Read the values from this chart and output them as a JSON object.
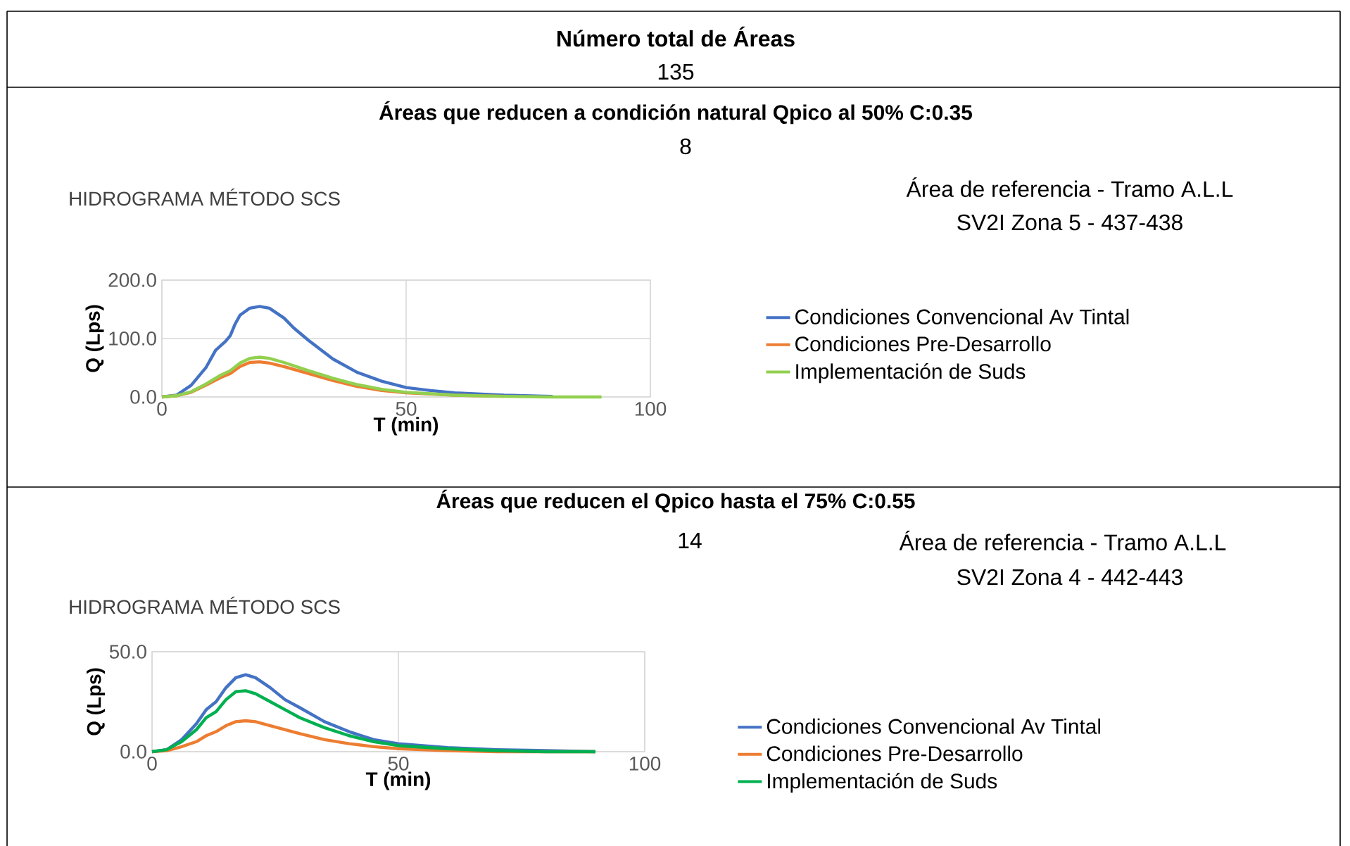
{
  "chart_data": [
    {
      "type": "line",
      "title": "Áreas que reducen a condición natural Qpico al 50% C:0.35",
      "subtitle": "HIDROGRAMA MÉTODO SCS",
      "annotations": [
        "Número total de Áreas",
        "135",
        "8",
        "Área de referencia - Tramo A.L.L",
        "SV2I Zona 5 - 437-438"
      ],
      "xlabel": "T (min)",
      "ylabel": "Q (Lps)",
      "xlim": [
        0,
        100
      ],
      "ylim": [
        0,
        200
      ],
      "xticks": [
        0,
        50,
        100
      ],
      "yticks": [
        {
          "value": 0,
          "label": "0.0"
        },
        {
          "value": 100,
          "label": "100.0"
        },
        {
          "value": 200,
          "label": "200.0"
        }
      ],
      "grid": true,
      "legend": "right",
      "series": [
        {
          "name": "Condiciones Convencional Av Tintal",
          "color": "#4472c4",
          "x": [
            0,
            3,
            6,
            9,
            11,
            13,
            14,
            15,
            16,
            18,
            20,
            22,
            25,
            27,
            30,
            35,
            40,
            45,
            50,
            55,
            60,
            70,
            80
          ],
          "values": [
            0,
            3,
            20,
            50,
            80,
            95,
            105,
            125,
            140,
            152,
            155,
            152,
            135,
            118,
            97,
            65,
            42,
            27,
            16,
            11,
            7,
            3,
            1
          ]
        },
        {
          "name": "Condiciones Pre-Desarrollo",
          "color": "#ed7d31",
          "x": [
            0,
            3,
            6,
            9,
            12,
            14,
            16,
            18,
            20,
            22,
            25,
            30,
            35,
            40,
            45,
            50,
            60,
            70
          ],
          "values": [
            0,
            2,
            8,
            20,
            33,
            40,
            52,
            59,
            60,
            58,
            52,
            40,
            28,
            18,
            11,
            7,
            3,
            1
          ]
        },
        {
          "name": "Implementación de Suds",
          "color": "#92d050",
          "x": [
            0,
            3,
            6,
            9,
            12,
            14,
            16,
            18,
            20,
            22,
            25,
            30,
            35,
            40,
            45,
            50,
            60,
            70,
            80,
            90
          ],
          "values": [
            0,
            2,
            9,
            22,
            37,
            45,
            58,
            66,
            68,
            66,
            59,
            45,
            32,
            21,
            13,
            8,
            3,
            1,
            0,
            0
          ]
        }
      ]
    },
    {
      "type": "line",
      "title": "Áreas que reducen el Qpico hasta el 75% C:0.55",
      "subtitle": "HIDROGRAMA MÉTODO SCS",
      "annotations": [
        "14",
        "Área de referencia - Tramo A.L.L",
        "SV2I Zona 4 - 442-443"
      ],
      "xlabel": "T (min)",
      "ylabel": "Q (Lps)",
      "xlim": [
        0,
        100
      ],
      "ylim": [
        0,
        50
      ],
      "xticks": [
        0,
        50,
        100
      ],
      "yticks": [
        {
          "value": 0,
          "label": "0.0"
        },
        {
          "value": 50,
          "label": "50.0"
        }
      ],
      "grid": true,
      "legend": "right",
      "series": [
        {
          "name": "Condiciones Convencional Av Tintal",
          "color": "#4472c4",
          "x": [
            0,
            3,
            6,
            9,
            11,
            13,
            15,
            17,
            19,
            21,
            24,
            27,
            30,
            35,
            40,
            45,
            50,
            60,
            70,
            80,
            90
          ],
          "values": [
            0,
            1,
            6,
            14,
            21,
            25,
            32,
            37,
            38.5,
            37,
            32,
            26,
            22,
            15,
            10,
            6,
            4,
            2,
            1,
            0.5,
            0
          ]
        },
        {
          "name": "Condiciones Pre-Desarrollo",
          "color": "#ed7d31",
          "x": [
            0,
            3,
            6,
            9,
            11,
            13,
            15,
            17,
            19,
            21,
            24,
            27,
            30,
            35,
            40,
            45,
            50,
            60,
            70,
            80,
            90
          ],
          "values": [
            0,
            0.5,
            2.5,
            5,
            8,
            10,
            13,
            15,
            15.5,
            15,
            13,
            11,
            9,
            6,
            4,
            2.5,
            1.5,
            0.5,
            0,
            0,
            0
          ]
        },
        {
          "name": "Implementación de Suds",
          "color": "#00b050",
          "x": [
            0,
            3,
            6,
            9,
            11,
            13,
            15,
            17,
            19,
            21,
            24,
            27,
            30,
            35,
            40,
            45,
            50,
            60,
            70,
            80,
            90
          ],
          "values": [
            0,
            1,
            5,
            11,
            17,
            20,
            26,
            30,
            30.5,
            29,
            25,
            21,
            17,
            12,
            8,
            5,
            3,
            1.5,
            0.5,
            0,
            0
          ]
        }
      ]
    }
  ]
}
